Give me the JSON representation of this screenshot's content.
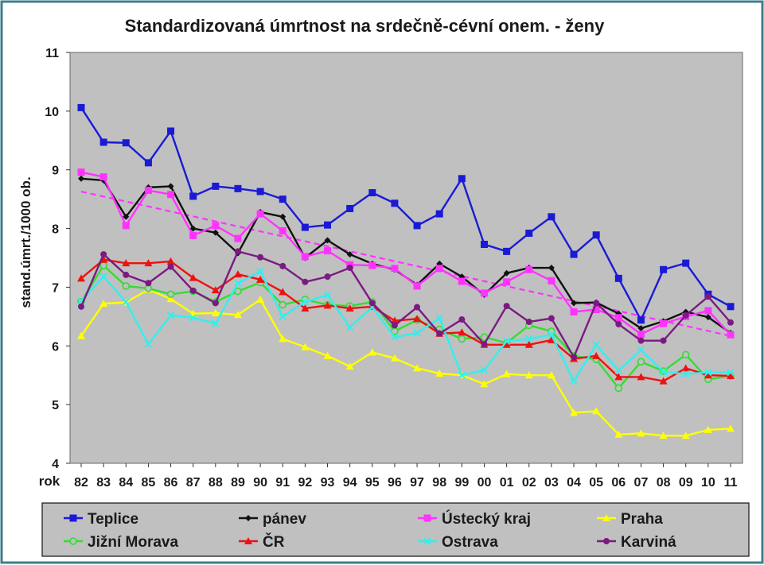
{
  "chart_data": {
    "type": "line",
    "title": "Standardizovaná úmrtnost na srdečně-cévní onem. - ženy",
    "ylabel": "stand.úmrt./1000 ob.",
    "xlabel": "rok",
    "ylim": [
      4,
      11
    ],
    "yticks": [
      "4",
      "5",
      "6",
      "7",
      "8",
      "9",
      "10",
      "11"
    ],
    "categories": [
      "82",
      "83",
      "84",
      "85",
      "86",
      "87",
      "88",
      "89",
      "90",
      "91",
      "92",
      "93",
      "94",
      "95",
      "96",
      "97",
      "98",
      "99",
      "00",
      "01",
      "02",
      "03",
      "04",
      "05",
      "06",
      "07",
      "08",
      "09",
      "10",
      "11"
    ],
    "grid": false,
    "legend_position": "bottom",
    "series": [
      {
        "name": "Teplice",
        "color": "#1a1ad6",
        "marker": "square",
        "values": [
          10.06,
          9.47,
          9.46,
          9.12,
          9.66,
          8.55,
          8.72,
          8.68,
          8.63,
          8.5,
          8.02,
          8.06,
          8.34,
          8.61,
          8.43,
          8.05,
          8.25,
          8.85,
          7.73,
          7.61,
          7.92,
          8.2,
          7.56,
          7.89,
          7.15,
          6.44,
          7.3,
          7.41,
          6.88,
          6.67
        ]
      },
      {
        "name": "pánev",
        "color": "#111111",
        "marker": "diamond",
        "values": [
          8.85,
          8.82,
          8.2,
          8.7,
          8.72,
          8.0,
          7.93,
          7.58,
          8.28,
          8.2,
          7.5,
          7.8,
          7.56,
          7.4,
          7.3,
          7.04,
          7.4,
          7.18,
          6.87,
          7.24,
          7.33,
          7.33,
          6.73,
          6.74,
          6.55,
          6.3,
          6.42,
          6.58,
          6.49,
          6.22
        ]
      },
      {
        "name": "Ústecký kraj",
        "color": "#ff33ff",
        "marker": "square",
        "values": [
          8.96,
          8.88,
          8.05,
          8.65,
          8.58,
          7.88,
          8.05,
          7.83,
          8.25,
          7.96,
          7.52,
          7.62,
          7.38,
          7.37,
          7.32,
          7.02,
          7.32,
          7.1,
          6.9,
          7.09,
          7.3,
          7.11,
          6.58,
          6.62,
          6.48,
          6.2,
          6.38,
          6.5,
          6.6,
          6.19
        ]
      },
      {
        "name": "Praha",
        "color": "#ffff00",
        "marker": "triangle",
        "values": [
          6.17,
          6.72,
          6.74,
          6.96,
          6.8,
          6.55,
          6.56,
          6.53,
          6.79,
          6.12,
          5.98,
          5.83,
          5.65,
          5.89,
          5.79,
          5.62,
          5.53,
          5.5,
          5.35,
          5.52,
          5.5,
          5.5,
          4.86,
          4.89,
          4.49,
          4.51,
          4.47,
          4.47,
          4.57,
          4.59
        ]
      },
      {
        "name": "Jižní Morava",
        "color": "#33dd33",
        "marker": "circle",
        "values": [
          6.75,
          7.37,
          7.02,
          6.98,
          6.88,
          6.93,
          6.75,
          6.93,
          7.08,
          6.7,
          6.79,
          6.7,
          6.68,
          6.75,
          6.25,
          6.44,
          6.28,
          6.12,
          6.15,
          6.05,
          6.35,
          6.25,
          5.83,
          5.77,
          5.28,
          5.73,
          5.57,
          5.85,
          5.43,
          5.49
        ]
      },
      {
        "name": "ČR",
        "color": "#ee1111",
        "marker": "triangle",
        "values": [
          7.15,
          7.47,
          7.41,
          7.41,
          7.44,
          7.16,
          6.95,
          7.22,
          7.13,
          6.92,
          6.64,
          6.69,
          6.64,
          6.67,
          6.43,
          6.46,
          6.21,
          6.23,
          6.02,
          6.02,
          6.02,
          6.1,
          5.78,
          5.83,
          5.47,
          5.47,
          5.4,
          5.62,
          5.5,
          5.49
        ]
      },
      {
        "name": "Ostrava",
        "color": "#33eeee",
        "marker": "cross",
        "values": [
          6.77,
          7.18,
          6.75,
          6.03,
          6.52,
          6.48,
          6.38,
          7.07,
          7.27,
          6.5,
          6.75,
          6.87,
          6.32,
          6.66,
          6.15,
          6.22,
          6.47,
          5.5,
          5.59,
          6.08,
          6.12,
          6.19,
          5.4,
          6.02,
          5.58,
          5.93,
          5.56,
          5.52,
          5.55,
          5.55
        ]
      },
      {
        "name": "Karviná",
        "color": "#7a1a82",
        "marker": "circle",
        "values": [
          6.67,
          7.56,
          7.21,
          7.07,
          7.35,
          6.94,
          6.73,
          7.61,
          7.51,
          7.36,
          7.09,
          7.18,
          7.33,
          6.73,
          6.35,
          6.66,
          6.21,
          6.45,
          6.03,
          6.68,
          6.41,
          6.47,
          5.81,
          6.73,
          6.37,
          6.09,
          6.09,
          6.52,
          6.84,
          6.4
        ]
      }
    ],
    "trendline": {
      "color": "#ff33ff",
      "style": "dashed",
      "start": 8.63,
      "end": 6.17
    }
  }
}
